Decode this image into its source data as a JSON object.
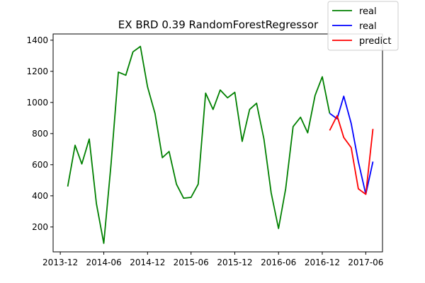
{
  "chart_data": {
    "type": "line",
    "title": "EX BRD 0.39 RandomForestRegressor",
    "xlabel": "",
    "ylabel": "",
    "x_type": "date",
    "xlim": [
      "2013-11-01",
      "2017-08-10"
    ],
    "ylim": [
      40,
      1440
    ],
    "grid": false,
    "legend_position": "top-right",
    "x_ticks": [
      "2013-12-01",
      "2014-06-01",
      "2014-12-01",
      "2015-06-01",
      "2015-12-01",
      "2016-06-01",
      "2016-12-01",
      "2017-06-01"
    ],
    "x_tick_labels": [
      "2013-12",
      "2014-06",
      "2014-12",
      "2015-06",
      "2015-12",
      "2016-06",
      "2016-12",
      "2017-06"
    ],
    "y_ticks": [
      200,
      400,
      600,
      800,
      1000,
      1200,
      1400
    ],
    "y_tick_labels": [
      "200",
      "400",
      "600",
      "800",
      "1000",
      "1200",
      "1400"
    ],
    "series": [
      {
        "name": "real",
        "color": "#008000",
        "x": [
          "2014-01-01",
          "2014-02-01",
          "2014-03-01",
          "2014-04-01",
          "2014-05-01",
          "2014-06-01",
          "2014-07-01",
          "2014-08-01",
          "2014-09-01",
          "2014-10-01",
          "2014-11-01",
          "2014-12-01",
          "2015-01-01",
          "2015-02-01",
          "2015-03-01",
          "2015-04-01",
          "2015-05-01",
          "2015-06-01",
          "2015-07-01",
          "2015-08-01",
          "2015-09-01",
          "2015-10-01",
          "2015-11-01",
          "2015-12-01",
          "2016-01-01",
          "2016-02-01",
          "2016-03-01",
          "2016-04-01",
          "2016-05-01",
          "2016-06-01",
          "2016-07-01",
          "2016-08-01",
          "2016-09-01",
          "2016-10-01",
          "2016-11-01",
          "2016-12-01",
          "2017-01-01"
        ],
        "y": [
          460,
          725,
          605,
          765,
          350,
          95,
          600,
          1195,
          1175,
          1325,
          1360,
          1100,
          930,
          645,
          685,
          475,
          385,
          390,
          475,
          1060,
          955,
          1080,
          1030,
          1065,
          750,
          955,
          995,
          765,
          420,
          190,
          445,
          845,
          905,
          805,
          1045,
          1165,
          930
        ]
      },
      {
        "name": "real",
        "color": "#0000ff",
        "x": [
          "2017-01-01",
          "2017-02-01",
          "2017-03-01",
          "2017-04-01",
          "2017-05-01",
          "2017-06-01",
          "2017-07-01"
        ],
        "y": [
          930,
          895,
          1040,
          865,
          620,
          410,
          620
        ]
      },
      {
        "name": "predict",
        "color": "#ff0000",
        "x": [
          "2017-01-01",
          "2017-02-01",
          "2017-03-01",
          "2017-04-01",
          "2017-05-01",
          "2017-06-01",
          "2017-07-01"
        ],
        "y": [
          820,
          915,
          775,
          710,
          445,
          410,
          830
        ]
      }
    ]
  }
}
